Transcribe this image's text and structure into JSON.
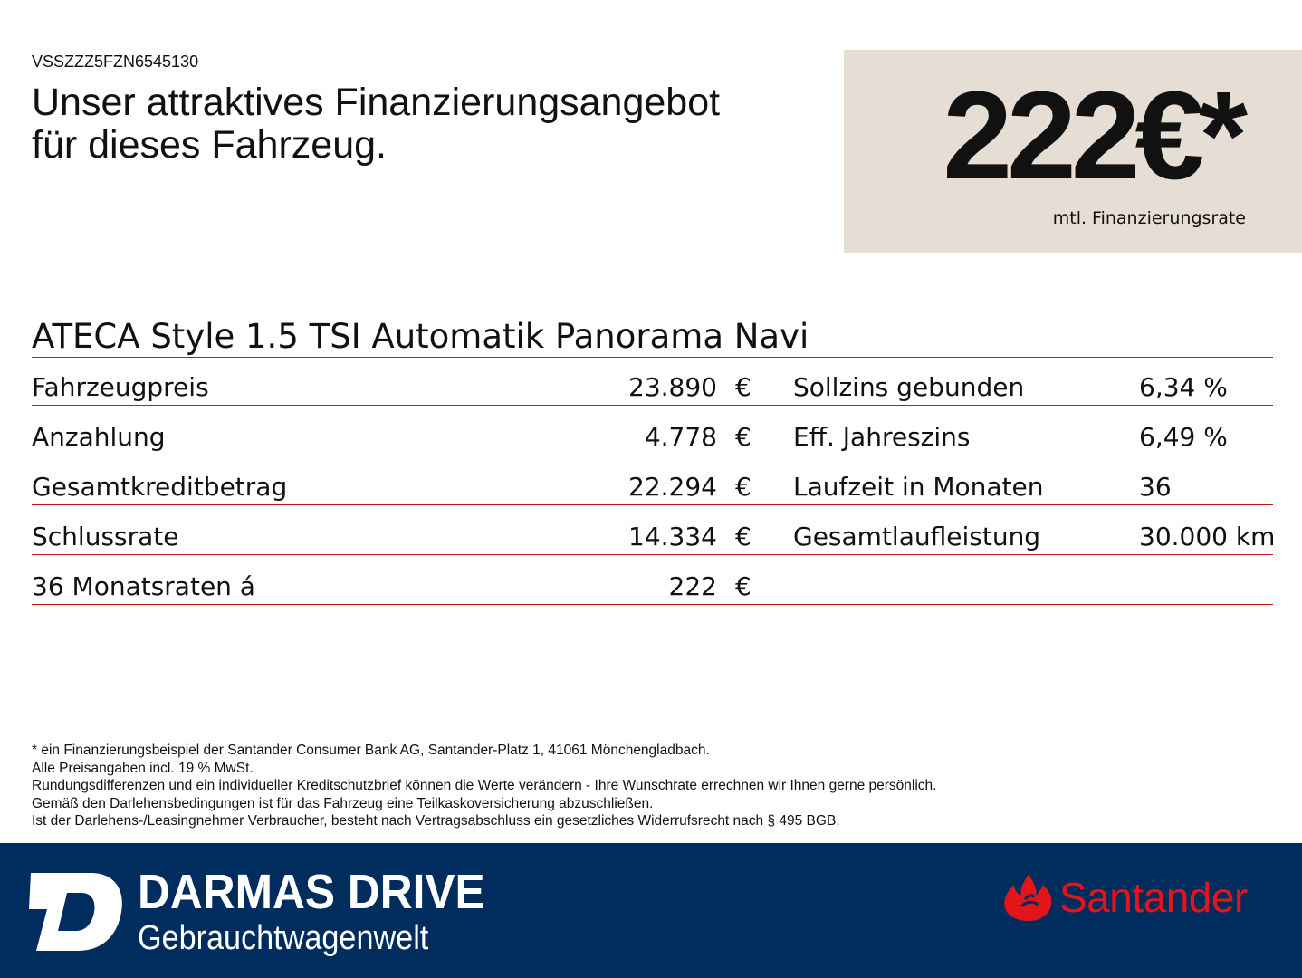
{
  "header": {
    "vin": "VSSZZZ5FZN6545130",
    "headline_line1": "Unser attraktives Finanzierungsangebot",
    "headline_line2": "für dieses Fahrzeug."
  },
  "price_box": {
    "amount": "222€*",
    "label": "mtl. Finanzierungsrate",
    "background_color": "#e6ded4"
  },
  "model": "ATECA Style 1.5 TSI Automatik Panorama Navi",
  "rows": [
    {
      "label": "Fahrzeugpreis",
      "value": "23.890",
      "currency": "€",
      "label2": "Sollzins gebunden",
      "value2": "6,34 %"
    },
    {
      "label": "Anzahlung",
      "value": "4.778",
      "currency": "€",
      "label2": "Eff. Jahreszins",
      "value2": "6,49 %"
    },
    {
      "label": "Gesamtkreditbetrag",
      "value": "22.294",
      "currency": "€",
      "label2": "Laufzeit in Monaten",
      "value2": "36"
    },
    {
      "label": "Schlussrate",
      "value": "14.334",
      "currency": "€",
      "label2": "Gesamtlaufleistung",
      "value2": "30.000 km"
    },
    {
      "label": "36 Monatsraten á",
      "value": "222",
      "currency": "€",
      "label2": "",
      "value2": ""
    }
  ],
  "footnotes": [
    "* ein Finanzierungsbeispiel der Santander Consumer Bank AG, Santander-Platz 1, 41061 Mönchengladbach.",
    "Alle Preisangaben incl. 19 % MwSt.",
    "Rundungsdifferenzen und ein individueller Kreditschutzbrief können die Werte verändern - Ihre Wunschrate errechnen wir Ihnen gerne persönlich.",
    "Gemäß den Darlehensbedingungen ist für das Fahrzeug eine Teilkaskoversicherung abzuschließen.",
    "Ist der Darlehens-/Leasingnehmer Verbraucher, besteht nach Vertragsabschluss ein gesetzliches Widerrufsrecht nach § 495 BGB."
  ],
  "footer": {
    "brand_name": "DARMAS DRIVE",
    "brand_subtitle": "Gebrauchtwagenwelt",
    "partner_logo": "Santander",
    "background_color": "#002d5e",
    "accent_color": "#e3141a",
    "line_color": "#c4161c"
  }
}
